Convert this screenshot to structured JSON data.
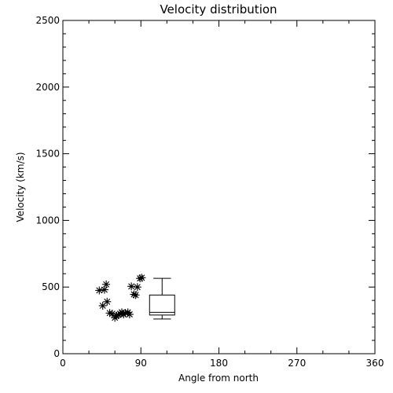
{
  "chart_data": {
    "type": "scatter",
    "title": "Velocity distribution",
    "xlabel": "Angle from north",
    "ylabel": "Velocity (km/s)",
    "xlim": [
      0,
      360
    ],
    "ylim": [
      0,
      2500
    ],
    "xticks": [
      0,
      90,
      180,
      270,
      360
    ],
    "yticks": [
      0,
      500,
      1000,
      1500,
      2000,
      2500
    ],
    "marker": "asterisk",
    "grid": false,
    "points": [
      {
        "x": 42,
        "y": 475
      },
      {
        "x": 46,
        "y": 360
      },
      {
        "x": 48,
        "y": 480
      },
      {
        "x": 50,
        "y": 520
      },
      {
        "x": 51,
        "y": 390
      },
      {
        "x": 54,
        "y": 305
      },
      {
        "x": 57,
        "y": 300
      },
      {
        "x": 60,
        "y": 270
      },
      {
        "x": 62,
        "y": 285
      },
      {
        "x": 64,
        "y": 290
      },
      {
        "x": 66,
        "y": 300
      },
      {
        "x": 68,
        "y": 310
      },
      {
        "x": 70,
        "y": 295
      },
      {
        "x": 72,
        "y": 305
      },
      {
        "x": 75,
        "y": 310
      },
      {
        "x": 77,
        "y": 295
      },
      {
        "x": 79,
        "y": 505
      },
      {
        "x": 82,
        "y": 445
      },
      {
        "x": 84,
        "y": 440
      },
      {
        "x": 86,
        "y": 500
      },
      {
        "x": 89,
        "y": 565
      },
      {
        "x": 91,
        "y": 570
      }
    ],
    "boxplot": {
      "x_left": 100,
      "x_right": 129,
      "min": 260,
      "q1": 290,
      "median": 310,
      "q3": 440,
      "max": 565
    }
  }
}
